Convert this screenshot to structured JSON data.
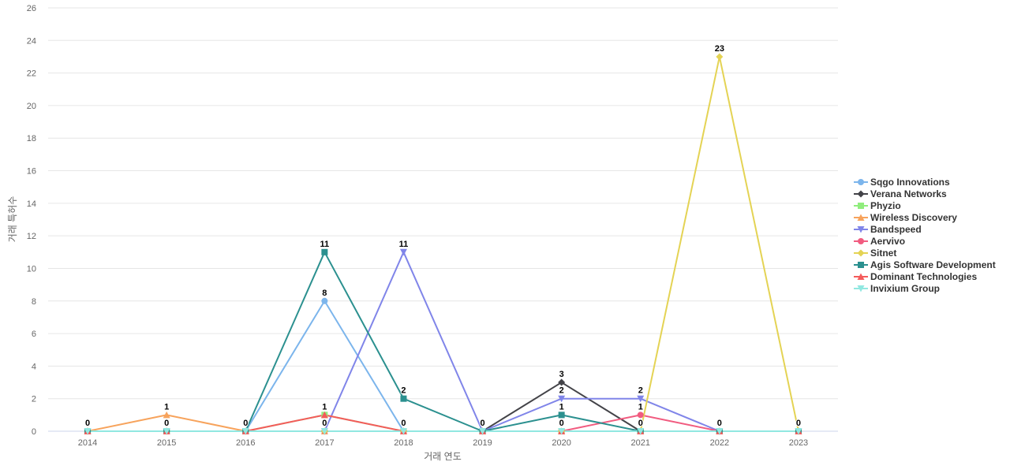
{
  "chart_data": {
    "type": "line",
    "title": "",
    "xlabel": "거래 연도",
    "ylabel": "거래 특허수",
    "categories": [
      "2014",
      "2015",
      "2016",
      "2017",
      "2018",
      "2019",
      "2020",
      "2021",
      "2022",
      "2023"
    ],
    "ylim": [
      0,
      26
    ],
    "yticks": [
      0,
      2,
      4,
      6,
      8,
      10,
      12,
      14,
      16,
      18,
      20,
      22,
      24,
      26
    ],
    "grid": true,
    "legend_position": "right",
    "series": [
      {
        "name": "Sqgo Innovations",
        "color": "#7cb5ec",
        "marker": "circle",
        "values": [
          0,
          0,
          0,
          8,
          0,
          0,
          0,
          0,
          0,
          0
        ]
      },
      {
        "name": "Verana Networks",
        "color": "#434348",
        "marker": "diamond",
        "values": [
          0,
          0,
          0,
          0,
          0,
          0,
          3,
          0,
          0,
          0
        ]
      },
      {
        "name": "Phyzio",
        "color": "#90ed7d",
        "marker": "square",
        "values": [
          0,
          0,
          0,
          1,
          0,
          0,
          0,
          0,
          0,
          0
        ]
      },
      {
        "name": "Wireless Discovery",
        "color": "#f7a35c",
        "marker": "triangle",
        "values": [
          0,
          1,
          0,
          0,
          0,
          0,
          0,
          0,
          0,
          0
        ]
      },
      {
        "name": "Bandspeed",
        "color": "#8085e9",
        "marker": "triangle-down",
        "values": [
          0,
          0,
          0,
          0,
          11,
          0,
          2,
          2,
          0,
          0
        ]
      },
      {
        "name": "Aervivo",
        "color": "#f15c80",
        "marker": "circle",
        "values": [
          0,
          0,
          0,
          0,
          0,
          0,
          0,
          1,
          0,
          0
        ]
      },
      {
        "name": "Sitnet",
        "color": "#e4d354",
        "marker": "diamond",
        "values": [
          0,
          0,
          0,
          0,
          0,
          0,
          0,
          0,
          23,
          0
        ]
      },
      {
        "name": "Agis Software Development",
        "color": "#2b908f",
        "marker": "square",
        "values": [
          0,
          0,
          0,
          11,
          2,
          0,
          1,
          0,
          0,
          0
        ]
      },
      {
        "name": "Dominant Technologies",
        "color": "#f45b5b",
        "marker": "triangle",
        "values": [
          0,
          0,
          0,
          1,
          0,
          0,
          0,
          0,
          0,
          0
        ]
      },
      {
        "name": "Invixium Group",
        "color": "#91e8e1",
        "marker": "triangle-down",
        "values": [
          0,
          0,
          0,
          0,
          0,
          0,
          0,
          0,
          0,
          0
        ]
      }
    ],
    "data_labels": [
      {
        "category": "2014",
        "series": "Sqgo Innovations",
        "value": 0
      },
      {
        "category": "2015",
        "series": "Wireless Discovery",
        "value": 1
      },
      {
        "category": "2015",
        "series": "Sqgo Innovations",
        "value": 0
      },
      {
        "category": "2016",
        "series": "Sqgo Innovations",
        "value": 0
      },
      {
        "category": "2017",
        "series": "Agis Software Development",
        "value": 11
      },
      {
        "category": "2017",
        "series": "Sqgo Innovations",
        "value": 8
      },
      {
        "category": "2017",
        "series": "Phyzio",
        "value": 1
      },
      {
        "category": "2017",
        "series": "Verana Networks",
        "value": 0
      },
      {
        "category": "2018",
        "series": "Bandspeed",
        "value": 11
      },
      {
        "category": "2018",
        "series": "Agis Software Development",
        "value": 2
      },
      {
        "category": "2018",
        "series": "Sqgo Innovations",
        "value": 0
      },
      {
        "category": "2019",
        "series": "Sqgo Innovations",
        "value": 0
      },
      {
        "category": "2020",
        "series": "Verana Networks",
        "value": 3
      },
      {
        "category": "2020",
        "series": "Bandspeed",
        "value": 2
      },
      {
        "category": "2020",
        "series": "Agis Software Development",
        "value": 1
      },
      {
        "category": "2020",
        "series": "Sqgo Innovations",
        "value": 0
      },
      {
        "category": "2021",
        "series": "Bandspeed",
        "value": 2
      },
      {
        "category": "2021",
        "series": "Aervivo",
        "value": 1
      },
      {
        "category": "2021",
        "series": "Sqgo Innovations",
        "value": 0
      },
      {
        "category": "2022",
        "series": "Sitnet",
        "value": 23
      },
      {
        "category": "2022",
        "series": "Sqgo Innovations",
        "value": 0
      },
      {
        "category": "2023",
        "series": "Sqgo Innovations",
        "value": 0
      }
    ]
  }
}
